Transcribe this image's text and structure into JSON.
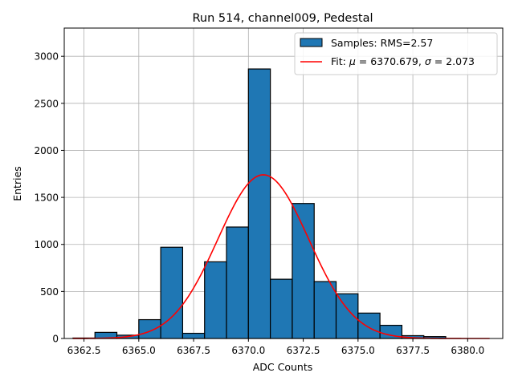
{
  "chart_data": {
    "type": "bar",
    "title": "Run 514, channel009, Pedestal",
    "xlabel": "ADC Counts",
    "ylabel": "Entries",
    "xlim": [
      6361.6,
      6381.6
    ],
    "ylim": [
      0,
      3300
    ],
    "grid": true,
    "legend_position": "top-right",
    "xticks": [
      6362.5,
      6365.0,
      6367.5,
      6370.0,
      6372.5,
      6375.0,
      6377.5,
      6380.0
    ],
    "xtick_labels": [
      "6362.5",
      "6365.0",
      "6367.5",
      "6370.0",
      "6372.5",
      "6375.0",
      "6377.5",
      "6380.0"
    ],
    "yticks": [
      0,
      500,
      1000,
      1500,
      2000,
      2500,
      3000
    ],
    "ytick_labels": [
      "0",
      "500",
      "1000",
      "1500",
      "2000",
      "2500",
      "3000"
    ],
    "bins": [
      {
        "x0": 6362.0,
        "x1": 6363.0,
        "count": 5
      },
      {
        "x0": 6363.0,
        "x1": 6364.0,
        "count": 65
      },
      {
        "x0": 6364.0,
        "x1": 6365.0,
        "count": 35
      },
      {
        "x0": 6365.0,
        "x1": 6366.0,
        "count": 200
      },
      {
        "x0": 6366.0,
        "x1": 6367.0,
        "count": 970
      },
      {
        "x0": 6367.0,
        "x1": 6368.0,
        "count": 55
      },
      {
        "x0": 6368.0,
        "x1": 6369.0,
        "count": 815
      },
      {
        "x0": 6369.0,
        "x1": 6370.0,
        "count": 1185
      },
      {
        "x0": 6370.0,
        "x1": 6371.0,
        "count": 2865
      },
      {
        "x0": 6371.0,
        "x1": 6372.0,
        "count": 630
      },
      {
        "x0": 6372.0,
        "x1": 6373.0,
        "count": 1435
      },
      {
        "x0": 6373.0,
        "x1": 6374.0,
        "count": 605
      },
      {
        "x0": 6374.0,
        "x1": 6375.0,
        "count": 475
      },
      {
        "x0": 6375.0,
        "x1": 6376.0,
        "count": 270
      },
      {
        "x0": 6376.0,
        "x1": 6377.0,
        "count": 140
      },
      {
        "x0": 6377.0,
        "x1": 6378.0,
        "count": 30
      },
      {
        "x0": 6378.0,
        "x1": 6379.0,
        "count": 20
      },
      {
        "x0": 6379.0,
        "x1": 6380.0,
        "count": 0
      },
      {
        "x0": 6380.0,
        "x1": 6381.0,
        "count": 0
      }
    ],
    "fit": {
      "type": "gaussian",
      "mu": 6370.679,
      "sigma": 2.073,
      "amplitude": 1740,
      "x_range": [
        6362.0,
        6381.0
      ],
      "color": "#ff0000"
    },
    "bar_color": "#1f77b4",
    "bar_edge_color": "#000000",
    "legend": [
      {
        "label": "Samples: RMS=2.57",
        "kind": "patch"
      },
      {
        "label_prefix": "Fit: ",
        "mu_symbol": "μ",
        "mu_text": " = 6370.679, ",
        "sigma_symbol": "σ",
        "sigma_text": " = 2.073",
        "kind": "line"
      }
    ]
  }
}
